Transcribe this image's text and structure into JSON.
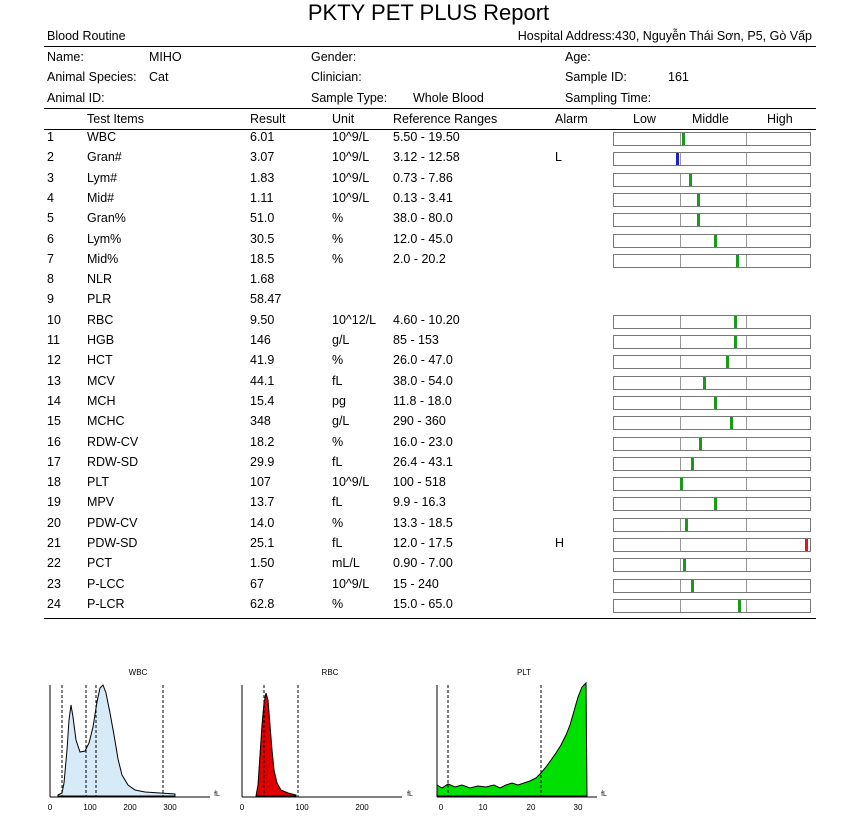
{
  "title": "PKTY PET PLUS Report",
  "section": "Blood Routine",
  "hospital": "Hospital Address:430, Nguyễn Thái Sơn, P5, Gò Vấp",
  "info": {
    "name_label": "Name:",
    "name_value": "MIHO",
    "gender_label": "Gender:",
    "age_label": "Age:",
    "species_label": "Animal Species:",
    "species_value": "Cat",
    "clinician_label": "Clinician:",
    "sample_id_label": "Sample ID:",
    "sample_id_value": "161",
    "animal_id_label": "Animal ID:",
    "sample_type_label": "Sample Type:",
    "sample_type_value": "Whole Blood",
    "sampling_time_label": "Sampling Time:"
  },
  "headers": {
    "test_items": "Test Items",
    "result": "Result",
    "unit": "Unit",
    "ref": "Reference Ranges",
    "alarm": "Alarm",
    "low": "Low",
    "middle": "Middle",
    "high": "High"
  },
  "colors": {
    "normal": "#1a9a1a",
    "low": "#1f1fd0",
    "high": "#e01818"
  },
  "rows": [
    {
      "no": "1",
      "item": "WBC",
      "result": "6.01",
      "unit": "10^9/L",
      "ref": "5.50 - 19.50",
      "alarm": "",
      "level": 0.35,
      "status": "normal"
    },
    {
      "no": "2",
      "item": "Gran#",
      "result": "3.07",
      "unit": "10^9/L",
      "ref": "3.12 - 12.58",
      "alarm": "L",
      "level": 0.32,
      "status": "low"
    },
    {
      "no": "3",
      "item": "Lym#",
      "result": "1.83",
      "unit": "10^9/L",
      "ref": "0.73 - 7.86",
      "alarm": "",
      "level": 0.39,
      "status": "normal"
    },
    {
      "no": "4",
      "item": "Mid#",
      "result": "1.11",
      "unit": "10^9/L",
      "ref": "0.13 - 3.41",
      "alarm": "",
      "level": 0.43,
      "status": "normal"
    },
    {
      "no": "5",
      "item": "Gran%",
      "result": "51.0",
      "unit": "%",
      "ref": "38.0 - 80.0",
      "alarm": "",
      "level": 0.43,
      "status": "normal"
    },
    {
      "no": "6",
      "item": "Lym%",
      "result": "30.5",
      "unit": "%",
      "ref": "12.0 - 45.0",
      "alarm": "",
      "level": 0.52,
      "status": "normal"
    },
    {
      "no": "7",
      "item": "Mid%",
      "result": "18.5",
      "unit": "%",
      "ref": "2.0 - 20.2",
      "alarm": "",
      "level": 0.63,
      "status": "normal"
    },
    {
      "no": "8",
      "item": "NLR",
      "result": "1.68",
      "unit": "",
      "ref": "",
      "alarm": "",
      "level": null,
      "status": ""
    },
    {
      "no": "9",
      "item": "PLR",
      "result": "58.47",
      "unit": "",
      "ref": "",
      "alarm": "",
      "level": null,
      "status": ""
    },
    {
      "no": "10",
      "item": "RBC",
      "result": "9.50",
      "unit": "10^12/L",
      "ref": "4.60 - 10.20",
      "alarm": "",
      "level": 0.62,
      "status": "normal"
    },
    {
      "no": "11",
      "item": "HGB",
      "result": "146",
      "unit": "g/L",
      "ref": "85 - 153",
      "alarm": "",
      "level": 0.62,
      "status": "normal"
    },
    {
      "no": "12",
      "item": "HCT",
      "result": "41.9",
      "unit": "%",
      "ref": "26.0 - 47.0",
      "alarm": "",
      "level": 0.58,
      "status": "normal"
    },
    {
      "no": "13",
      "item": "MCV",
      "result": "44.1",
      "unit": "fL",
      "ref": "38.0 - 54.0",
      "alarm": "",
      "level": 0.46,
      "status": "normal"
    },
    {
      "no": "14",
      "item": "MCH",
      "result": "15.4",
      "unit": "pg",
      "ref": "11.8 - 18.0",
      "alarm": "",
      "level": 0.52,
      "status": "normal"
    },
    {
      "no": "15",
      "item": "MCHC",
      "result": "348",
      "unit": "g/L",
      "ref": "290 - 360",
      "alarm": "",
      "level": 0.6,
      "status": "normal"
    },
    {
      "no": "16",
      "item": "RDW-CV",
      "result": "18.2",
      "unit": "%",
      "ref": "16.0 - 23.0",
      "alarm": "",
      "level": 0.44,
      "status": "normal"
    },
    {
      "no": "17",
      "item": "RDW-SD",
      "result": "29.9",
      "unit": "fL",
      "ref": "26.4 - 43.1",
      "alarm": "",
      "level": 0.4,
      "status": "normal"
    },
    {
      "no": "18",
      "item": "PLT",
      "result": "107",
      "unit": "10^9/L",
      "ref": "100 - 518",
      "alarm": "",
      "level": 0.34,
      "status": "normal"
    },
    {
      "no": "19",
      "item": "MPV",
      "result": "13.7",
      "unit": "fL",
      "ref": "9.9 - 16.3",
      "alarm": "",
      "level": 0.52,
      "status": "normal"
    },
    {
      "no": "20",
      "item": "PDW-CV",
      "result": "14.0",
      "unit": "%",
      "ref": "13.3 - 18.5",
      "alarm": "",
      "level": 0.37,
      "status": "normal"
    },
    {
      "no": "21",
      "item": "PDW-SD",
      "result": "25.1",
      "unit": "fL",
      "ref": "12.0 - 17.5",
      "alarm": "H",
      "level": 0.99,
      "status": "high"
    },
    {
      "no": "22",
      "item": "PCT",
      "result": "1.50",
      "unit": "mL/L",
      "ref": "0.90 - 7.00",
      "alarm": "",
      "level": 0.36,
      "status": "normal"
    },
    {
      "no": "23",
      "item": "P-LCC",
      "result": "67",
      "unit": "10^9/L",
      "ref": "15 - 240",
      "alarm": "",
      "level": 0.4,
      "status": "normal"
    },
    {
      "no": "24",
      "item": "P-LCR",
      "result": "62.8",
      "unit": "%",
      "ref": "15.0 - 65.0",
      "alarm": "",
      "level": 0.64,
      "status": "normal"
    }
  ],
  "histograms": [
    {
      "name": "WBC",
      "unit": "fL",
      "ticks": [
        "0",
        "100",
        "200",
        "300"
      ],
      "fill": "#d6eaf8"
    },
    {
      "name": "RBC",
      "unit": "fL",
      "ticks": [
        "0",
        "100",
        "200"
      ],
      "fill": "#e00000"
    },
    {
      "name": "PLT",
      "unit": "fL",
      "ticks": [
        "0",
        "10",
        "20",
        "30"
      ],
      "fill": "#00e000"
    }
  ]
}
